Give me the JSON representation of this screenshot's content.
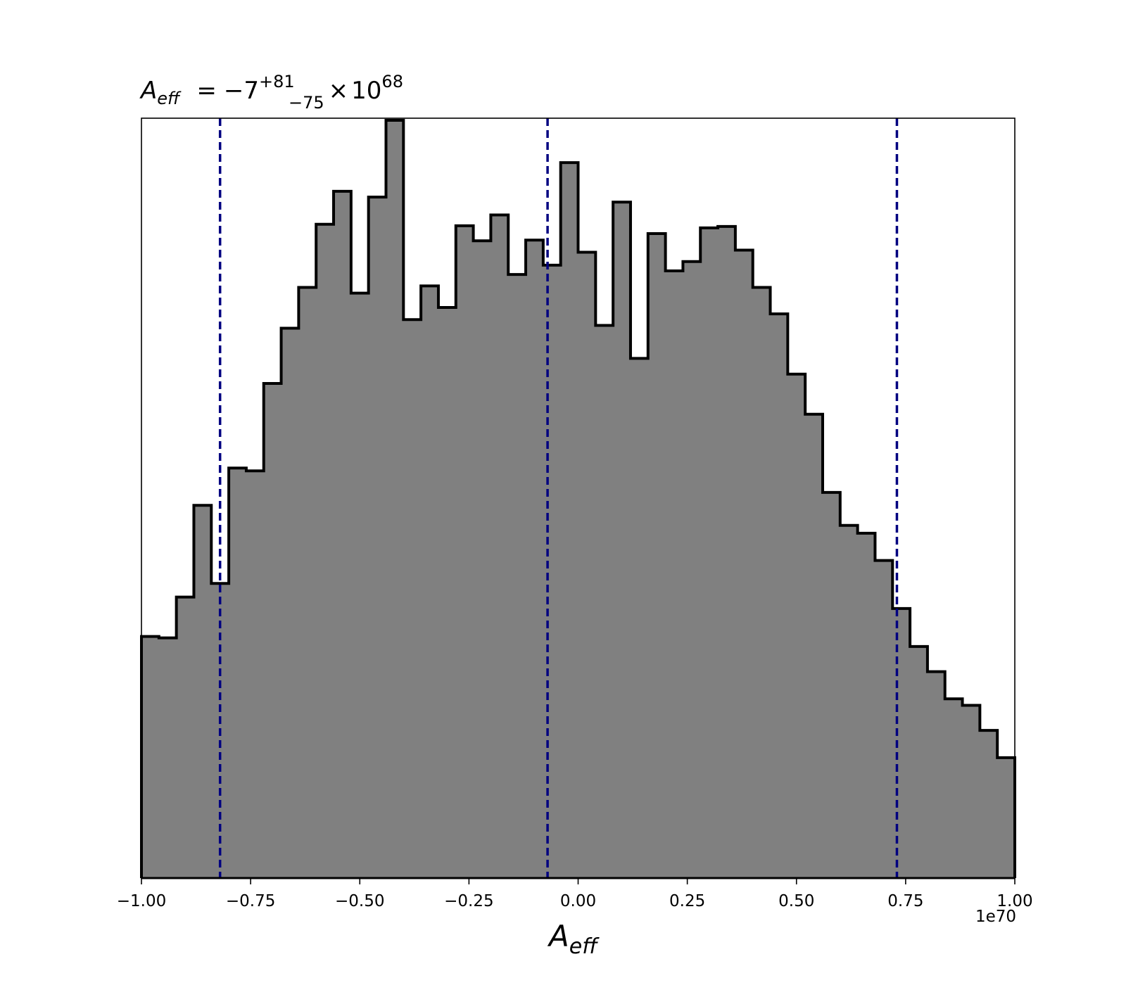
{
  "chart_data": {
    "type": "histogram",
    "title": {
      "symbol_main": "A",
      "symbol_sub": "eff",
      "equals": "=",
      "median": "−7",
      "plus_err": "+81",
      "minus_err": "−75",
      "times": "×",
      "base": "10",
      "exponent": "68"
    },
    "xlabel": {
      "main": "A",
      "sub": "eff"
    },
    "x_offset_label": "1e70",
    "xlim": [
      -1.0,
      1.0
    ],
    "ylim": [
      0,
      1060
    ],
    "x_ticks": [
      -1.0,
      -0.75,
      -0.5,
      -0.25,
      0.0,
      0.25,
      0.5,
      0.75,
      1.0
    ],
    "x_tick_labels": [
      "−1.00",
      "−0.75",
      "−0.50",
      "−0.25",
      "0.00",
      "0.25",
      "0.50",
      "0.75",
      "1.00"
    ],
    "y_ticks_visible": false,
    "grid": false,
    "bins": {
      "start": -1.0,
      "end": 1.0,
      "count": 50
    },
    "counts": [
      337,
      335,
      392,
      520,
      411,
      572,
      568,
      690,
      767,
      824,
      912,
      958,
      816,
      950,
      1057,
      779,
      826,
      796,
      910,
      889,
      925,
      842,
      890,
      855,
      998,
      873,
      771,
      943,
      725,
      899,
      847,
      860,
      907,
      909,
      876,
      824,
      787,
      703,
      647,
      538,
      492,
      481,
      443,
      376,
      323,
      288,
      250,
      241,
      206,
      168
    ],
    "fill_color": "#808080",
    "edge_color": "#000000",
    "quantile_lines": {
      "values": [
        -0.82,
        -0.07,
        0.73
      ],
      "color": "#000080",
      "style": "dashed"
    }
  }
}
